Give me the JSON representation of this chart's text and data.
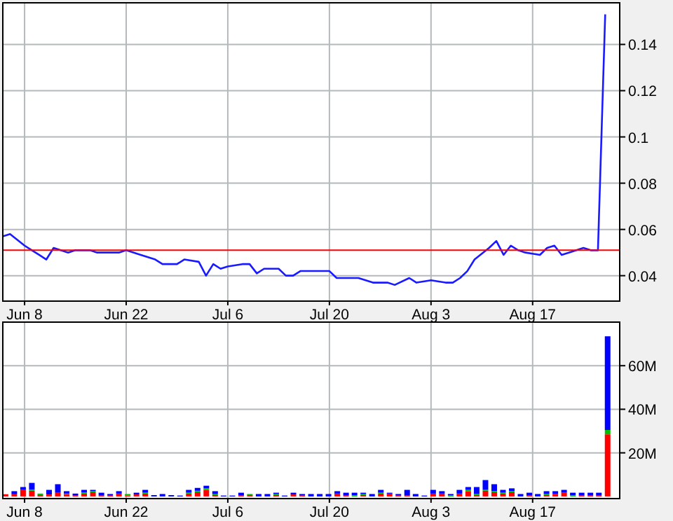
{
  "chart_data": [
    {
      "type": "line",
      "xlim": [
        "--06-05",
        "--08-29"
      ],
      "ylim": [
        0.029,
        0.158
      ],
      "grid": true,
      "xticks": [
        {
          "value": "--06-08",
          "label": "Jun 8"
        },
        {
          "value": "--06-22",
          "label": "Jun 22"
        },
        {
          "value": "--07-06",
          "label": "Jul 6"
        },
        {
          "value": "--07-20",
          "label": "Jul 20"
        },
        {
          "value": "--08-03",
          "label": "Aug 3"
        },
        {
          "value": "--08-17",
          "label": "Aug 17"
        }
      ],
      "yticks": [
        0.04,
        0.06,
        0.08,
        0.1,
        0.12,
        0.14
      ],
      "ref_lines": [
        {
          "axis": "y",
          "value": 0.051,
          "color": "#ff0000"
        }
      ],
      "x": [
        "--06-05",
        "--06-06",
        "--06-08",
        "--06-09",
        "--06-10",
        "--06-11",
        "--06-12",
        "--06-14",
        "--06-15",
        "--06-17",
        "--06-18",
        "--06-21",
        "--06-22",
        "--06-24",
        "--06-26",
        "--06-27",
        "--06-29",
        "--06-30",
        "--07-02",
        "--07-03",
        "--07-04",
        "--07-05",
        "--07-06",
        "--07-08",
        "--07-09",
        "--07-10",
        "--07-11",
        "--07-13",
        "--07-14",
        "--07-15",
        "--07-16",
        "--07-19",
        "--07-20",
        "--07-21",
        "--07-22",
        "--07-24",
        "--07-26",
        "--07-28",
        "--07-29",
        "--07-31",
        "--08-01",
        "--08-03",
        "--08-05",
        "--08-06",
        "--08-07",
        "--08-08",
        "--08-09",
        "--08-11",
        "--08-12",
        "--08-13",
        "--08-14",
        "--08-15",
        "--08-16",
        "--08-18",
        "--08-19",
        "--08-20",
        "--08-21",
        "--08-22",
        "--08-24",
        "--08-25",
        "--08-26",
        "--08-27"
      ],
      "series": [
        {
          "color": "#1a1aff",
          "values": [
            0.057,
            0.058,
            0.053,
            0.051,
            0.049,
            0.047,
            0.052,
            0.05,
            0.051,
            0.051,
            0.05,
            0.05,
            0.051,
            0.049,
            0.047,
            0.045,
            0.045,
            0.047,
            0.046,
            0.04,
            0.045,
            0.043,
            0.044,
            0.045,
            0.045,
            0.041,
            0.043,
            0.043,
            0.04,
            0.04,
            0.042,
            0.042,
            0.042,
            0.039,
            0.039,
            0.039,
            0.037,
            0.037,
            0.036,
            0.039,
            0.037,
            0.038,
            0.037,
            0.037,
            0.039,
            0.042,
            0.047,
            0.052,
            0.055,
            0.049,
            0.053,
            0.051,
            0.05,
            0.049,
            0.052,
            0.053,
            0.049,
            0.05,
            0.052,
            0.051,
            0.051,
            0.153
          ]
        }
      ]
    },
    {
      "type": "bar",
      "stacked": true,
      "xlim": [
        "--06-05",
        "--08-29"
      ],
      "ylim": [
        -1,
        80
      ],
      "grid": true,
      "xticks": [
        {
          "value": "--06-08",
          "label": "Jun 8"
        },
        {
          "value": "--06-22",
          "label": "Jun 22"
        },
        {
          "value": "--07-06",
          "label": "Jul 6"
        },
        {
          "value": "--07-20",
          "label": "Jul 20"
        },
        {
          "value": "--08-03",
          "label": "Aug 3"
        },
        {
          "value": "--08-17",
          "label": "Aug 17"
        }
      ],
      "yticks": [
        {
          "value": 20,
          "label": "20M"
        },
        {
          "value": 40,
          "label": "40M"
        },
        {
          "value": 60,
          "label": "60M"
        }
      ],
      "x": [
        "--06-05T09:00",
        "--06-06T14:00",
        "--06-07T19:00",
        "--06-09T00:00",
        "--06-10T04:00",
        "--06-11T09:00",
        "--06-12T14:00",
        "--06-13T19:00",
        "--06-15T00:00",
        "--06-16T05:00",
        "--06-17T10:00",
        "--06-18T14:00",
        "--06-19T19:00",
        "--06-21T00:00",
        "--06-22T05:00",
        "--06-23T10:00",
        "--06-24T15:00",
        "--06-25T20:00",
        "--06-27T00:00",
        "--06-28T05:00",
        "--06-29T10:00",
        "--06-30T15:00",
        "--07-01T20:00",
        "--07-03T01:00",
        "--07-04T06:00",
        "--07-05T10:00",
        "--07-06T15:00",
        "--07-07T20:00",
        "--07-09T01:00",
        "--07-10T06:00",
        "--07-11T11:00",
        "--07-12T16:00",
        "--07-13T20:00",
        "--07-15T01:00",
        "--07-16T06:00",
        "--07-17T11:00",
        "--07-18T16:00",
        "--07-19T21:00",
        "--07-21T02:00",
        "--07-22T07:00",
        "--07-23T11:00",
        "--07-24T16:00",
        "--07-25T21:00",
        "--07-27T02:00",
        "--07-28T07:00",
        "--07-29T12:00",
        "--07-30T17:00",
        "--07-31T21:00",
        "--08-02T02:00",
        "--08-03T07:00",
        "--08-04T12:00",
        "--08-05T17:00",
        "--08-06T22:00",
        "--08-08T03:00",
        "--08-09T07:00",
        "--08-10T12:00",
        "--08-11T17:00",
        "--08-12T22:00",
        "--08-14T03:00",
        "--08-15T08:00",
        "--08-16T13:00",
        "--08-17T17:00",
        "--08-18T22:00",
        "--08-20T03:00",
        "--08-21T08:00",
        "--08-22T13:00",
        "--08-23T18:00",
        "--08-24T23:00",
        "--08-26T03:00",
        "--08-27T08:00"
      ],
      "series": [
        {
          "color": "#ff0000",
          "values": [
            1,
            1,
            3,
            2.6,
            0.6,
            0.9,
            1.9,
            0.9,
            0.6,
            1.3,
            1.9,
            0.6,
            0.6,
            1.3,
            0.4,
            0.9,
            1.3,
            0,
            0,
            0,
            0,
            1.3,
            1.9,
            3,
            0.6,
            0,
            0,
            0.6,
            0.6,
            0,
            0,
            0.6,
            0,
            0.9,
            0.6,
            0,
            0,
            0,
            1.3,
            0.6,
            0,
            0.6,
            0,
            1.3,
            1.3,
            0.6,
            0.6,
            0,
            0,
            1.3,
            1.3,
            0,
            1.3,
            2.4,
            0.6,
            2.6,
            1.9,
            1.3,
            1.9,
            0,
            0.6,
            0,
            0.6,
            1.1,
            1.7,
            0,
            0.6,
            0.6,
            0.6,
            28.5
          ]
        },
        {
          "color": "#00c000",
          "values": [
            0,
            0,
            0,
            0.6,
            0.7,
            0,
            0,
            0.4,
            0,
            0.6,
            0.5,
            0,
            0,
            0,
            0.7,
            0,
            0.4,
            0,
            0,
            0,
            0,
            0.4,
            0.7,
            0.7,
            0.5,
            0,
            0,
            0,
            0.5,
            0,
            0,
            0.5,
            0,
            0,
            0,
            0,
            0,
            0,
            0,
            0,
            0.6,
            0.5,
            0,
            0.4,
            0,
            0,
            0,
            0,
            0,
            0,
            0,
            0.6,
            0,
            0.6,
            0.5,
            0.4,
            0.5,
            0.4,
            0.5,
            0,
            0,
            0,
            0.5,
            0,
            0,
            0.6,
            0,
            0,
            0,
            2
          ]
        },
        {
          "color": "#0000ff",
          "values": [
            0,
            1.4,
            1.3,
            3,
            0,
            2.1,
            3.7,
            1.1,
            0.7,
            1.1,
            0.6,
            1.1,
            0.5,
            1.1,
            0,
            0.8,
            1.3,
            0.6,
            1.1,
            0.6,
            0.4,
            1.3,
            1.3,
            1.2,
            1.3,
            0.4,
            0.4,
            1.1,
            0,
            1.1,
            1.1,
            0.6,
            0.4,
            0.8,
            0.5,
            1.1,
            1.1,
            1.1,
            1.1,
            1.1,
            1.1,
            0.6,
            1.1,
            1.3,
            0.4,
            0.5,
            2.4,
            1.1,
            0.4,
            1.7,
            1.1,
            0.5,
            1.7,
            1.3,
            3.2,
            4.5,
            3.2,
            1.3,
            1.3,
            1.1,
            1.1,
            1.1,
            1.3,
            1.3,
            1.3,
            1.1,
            1.1,
            1.1,
            1.1,
            43
          ]
        }
      ]
    }
  ]
}
